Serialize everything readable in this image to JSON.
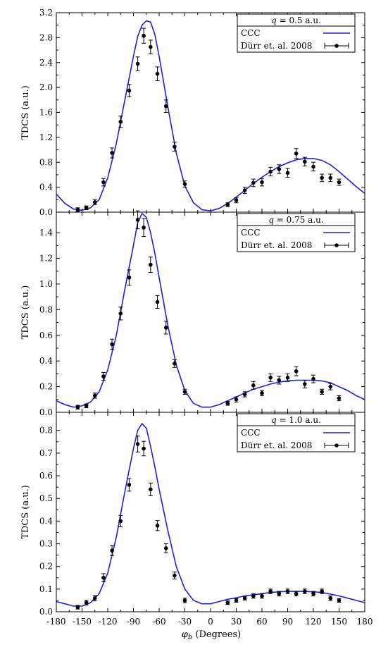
{
  "x_axis": {
    "label_symbol": "φ",
    "label_sub": "b",
    "label_rest": " (Degrees)",
    "range": [
      -180,
      180
    ],
    "ticks": [
      -180,
      -150,
      -120,
      -90,
      -60,
      -30,
      0,
      30,
      60,
      90,
      120,
      150,
      180
    ],
    "tick_labels": [
      "-180",
      "-150",
      "-120",
      "-90",
      "-60",
      "-30",
      "0",
      "30",
      "60",
      "90",
      "120",
      "150",
      "180"
    ]
  },
  "y_axis_label": "TDCS (a.u.)",
  "colors": {
    "theory": "#1f1fe0",
    "experiment": "#000000",
    "axes": "#000000"
  },
  "chart_data": [
    {
      "type": "line",
      "legend_title": "q = 0.5 a.u.",
      "legend_title_parts": [
        "q",
        " = 0.5 a.u."
      ],
      "ylim": [
        0,
        3.2
      ],
      "yticks": [
        0,
        0.4,
        0.8,
        1.2,
        1.6,
        2.0,
        2.4,
        2.8,
        3.2
      ],
      "ytick_labels": [
        "0.0",
        "0.4",
        "0.8",
        "1.2",
        "1.6",
        "2.0",
        "2.4",
        "2.8",
        "3.2"
      ],
      "series": [
        {
          "name": "CCC",
          "kind": "line",
          "x": [
            -180,
            -170,
            -160,
            -150,
            -140,
            -130,
            -120,
            -110,
            -100,
            -90,
            -85,
            -80,
            -75,
            -70,
            -65,
            -60,
            -50,
            -40,
            -30,
            -20,
            -10,
            0,
            10,
            20,
            30,
            40,
            50,
            60,
            70,
            80,
            90,
            100,
            110,
            120,
            130,
            140,
            150,
            160,
            170,
            180
          ],
          "y": [
            0.29,
            0.14,
            0.05,
            0.03,
            0.07,
            0.2,
            0.55,
            1.1,
            1.8,
            2.5,
            2.82,
            3.0,
            3.07,
            3.05,
            2.85,
            2.5,
            1.7,
            0.95,
            0.42,
            0.15,
            0.04,
            0.02,
            0.06,
            0.14,
            0.24,
            0.35,
            0.46,
            0.56,
            0.65,
            0.73,
            0.79,
            0.84,
            0.86,
            0.86,
            0.83,
            0.76,
            0.65,
            0.53,
            0.41,
            0.3
          ]
        },
        {
          "name": "Dürr et. al. 2008",
          "kind": "errorbar",
          "x": [
            -155,
            -145,
            -135,
            -125,
            -115,
            -105,
            -95,
            -85,
            -78,
            -70,
            -62,
            -52,
            -42,
            -30,
            20,
            30,
            40,
            50,
            60,
            70,
            80,
            90,
            100,
            110,
            120,
            130,
            140,
            150
          ],
          "y": [
            0.04,
            0.07,
            0.16,
            0.48,
            0.95,
            1.45,
            1.95,
            2.38,
            2.83,
            2.65,
            2.22,
            1.7,
            1.05,
            0.45,
            0.12,
            0.19,
            0.35,
            0.47,
            0.48,
            0.65,
            0.69,
            0.63,
            0.94,
            0.81,
            0.73,
            0.55,
            0.55,
            0.48
          ],
          "err": [
            0.03,
            0.03,
            0.04,
            0.06,
            0.08,
            0.09,
            0.1,
            0.11,
            0.12,
            0.11,
            0.11,
            0.1,
            0.07,
            0.05,
            0.03,
            0.04,
            0.05,
            0.06,
            0.06,
            0.07,
            0.07,
            0.07,
            0.08,
            0.07,
            0.07,
            0.06,
            0.06,
            0.05
          ]
        }
      ]
    },
    {
      "type": "line",
      "legend_title": "q = 0.75 a.u.",
      "legend_title_parts": [
        "q",
        " = 0.75 a.u."
      ],
      "ylim": [
        0,
        1.56
      ],
      "yticks": [
        0,
        0.2,
        0.4,
        0.6,
        0.8,
        1.0,
        1.2,
        1.4
      ],
      "ytick_labels": [
        "0.0",
        "0.2",
        "0.4",
        "0.6",
        "0.8",
        "1.0",
        "1.2",
        "1.4"
      ],
      "series": [
        {
          "name": "CCC",
          "kind": "line",
          "x": [
            -180,
            -170,
            -160,
            -150,
            -140,
            -130,
            -120,
            -110,
            -100,
            -90,
            -85,
            -80,
            -75,
            -70,
            -65,
            -60,
            -50,
            -40,
            -30,
            -20,
            -10,
            0,
            10,
            20,
            30,
            40,
            50,
            60,
            70,
            80,
            90,
            100,
            110,
            120,
            130,
            140,
            150,
            160,
            170,
            180
          ],
          "y": [
            0.09,
            0.06,
            0.04,
            0.05,
            0.08,
            0.16,
            0.33,
            0.6,
            0.96,
            1.3,
            1.48,
            1.55,
            1.52,
            1.4,
            1.24,
            1.05,
            0.68,
            0.37,
            0.17,
            0.07,
            0.04,
            0.04,
            0.06,
            0.09,
            0.12,
            0.15,
            0.18,
            0.2,
            0.22,
            0.235,
            0.245,
            0.25,
            0.25,
            0.25,
            0.245,
            0.23,
            0.2,
            0.17,
            0.13,
            0.1
          ]
        },
        {
          "name": "Dürr et. al. 2008",
          "kind": "errorbar",
          "x": [
            -155,
            -145,
            -135,
            -125,
            -115,
            -105,
            -95,
            -85,
            -78,
            -70,
            -62,
            -52,
            -42,
            -30,
            20,
            30,
            40,
            50,
            60,
            70,
            80,
            90,
            100,
            110,
            120,
            130,
            140,
            150
          ],
          "y": [
            0.04,
            0.05,
            0.13,
            0.28,
            0.53,
            0.77,
            1.05,
            1.5,
            1.44,
            1.15,
            0.86,
            0.66,
            0.38,
            0.16,
            0.07,
            0.1,
            0.14,
            0.21,
            0.15,
            0.27,
            0.25,
            0.27,
            0.32,
            0.22,
            0.26,
            0.16,
            0.2,
            0.11
          ],
          "err": [
            0.015,
            0.015,
            0.02,
            0.03,
            0.04,
            0.05,
            0.06,
            0.07,
            0.07,
            0.06,
            0.05,
            0.05,
            0.03,
            0.02,
            0.015,
            0.02,
            0.02,
            0.03,
            0.02,
            0.03,
            0.03,
            0.03,
            0.035,
            0.03,
            0.03,
            0.02,
            0.025,
            0.02
          ]
        }
      ]
    },
    {
      "type": "line",
      "legend_title": "q = 1.0 a.u.",
      "legend_title_parts": [
        "q",
        " = 1.0 a.u."
      ],
      "ylim": [
        0,
        0.88
      ],
      "yticks": [
        0,
        0.1,
        0.2,
        0.3,
        0.4,
        0.5,
        0.6,
        0.7,
        0.8
      ],
      "ytick_labels": [
        "0.0",
        "0.1",
        "0.2",
        "0.3",
        "0.4",
        "0.5",
        "0.6",
        "0.7",
        "0.8"
      ],
      "series": [
        {
          "name": "CCC",
          "kind": "line",
          "x": [
            -180,
            -170,
            -160,
            -150,
            -140,
            -130,
            -120,
            -110,
            -100,
            -90,
            -85,
            -80,
            -75,
            -70,
            -65,
            -60,
            -50,
            -40,
            -30,
            -20,
            -10,
            0,
            10,
            20,
            30,
            40,
            50,
            60,
            70,
            80,
            90,
            100,
            110,
            120,
            130,
            140,
            150,
            160,
            170,
            180
          ],
          "y": [
            0.045,
            0.035,
            0.025,
            0.025,
            0.04,
            0.08,
            0.17,
            0.33,
            0.53,
            0.72,
            0.8,
            0.83,
            0.81,
            0.73,
            0.64,
            0.54,
            0.36,
            0.2,
            0.1,
            0.05,
            0.035,
            0.035,
            0.045,
            0.055,
            0.062,
            0.07,
            0.075,
            0.08,
            0.085,
            0.088,
            0.09,
            0.09,
            0.09,
            0.088,
            0.085,
            0.078,
            0.07,
            0.06,
            0.05,
            0.04
          ]
        },
        {
          "name": "Dürr et. al. 2008",
          "kind": "errorbar",
          "x": [
            -155,
            -145,
            -135,
            -125,
            -115,
            -105,
            -95,
            -85,
            -78,
            -70,
            -62,
            -52,
            -42,
            -30,
            20,
            30,
            40,
            50,
            60,
            70,
            80,
            90,
            100,
            110,
            120,
            130,
            140,
            150
          ],
          "y": [
            0.02,
            0.04,
            0.06,
            0.15,
            0.27,
            0.4,
            0.56,
            0.74,
            0.72,
            0.54,
            0.38,
            0.28,
            0.16,
            0.05,
            0.04,
            0.05,
            0.06,
            0.07,
            0.07,
            0.09,
            0.08,
            0.09,
            0.08,
            0.09,
            0.08,
            0.09,
            0.06,
            0.05
          ],
          "err": [
            0.008,
            0.01,
            0.012,
            0.018,
            0.022,
            0.025,
            0.028,
            0.035,
            0.032,
            0.028,
            0.022,
            0.02,
            0.015,
            0.01,
            0.008,
            0.008,
            0.008,
            0.01,
            0.01,
            0.01,
            0.01,
            0.01,
            0.01,
            0.01,
            0.01,
            0.01,
            0.01,
            0.008
          ]
        }
      ]
    }
  ]
}
